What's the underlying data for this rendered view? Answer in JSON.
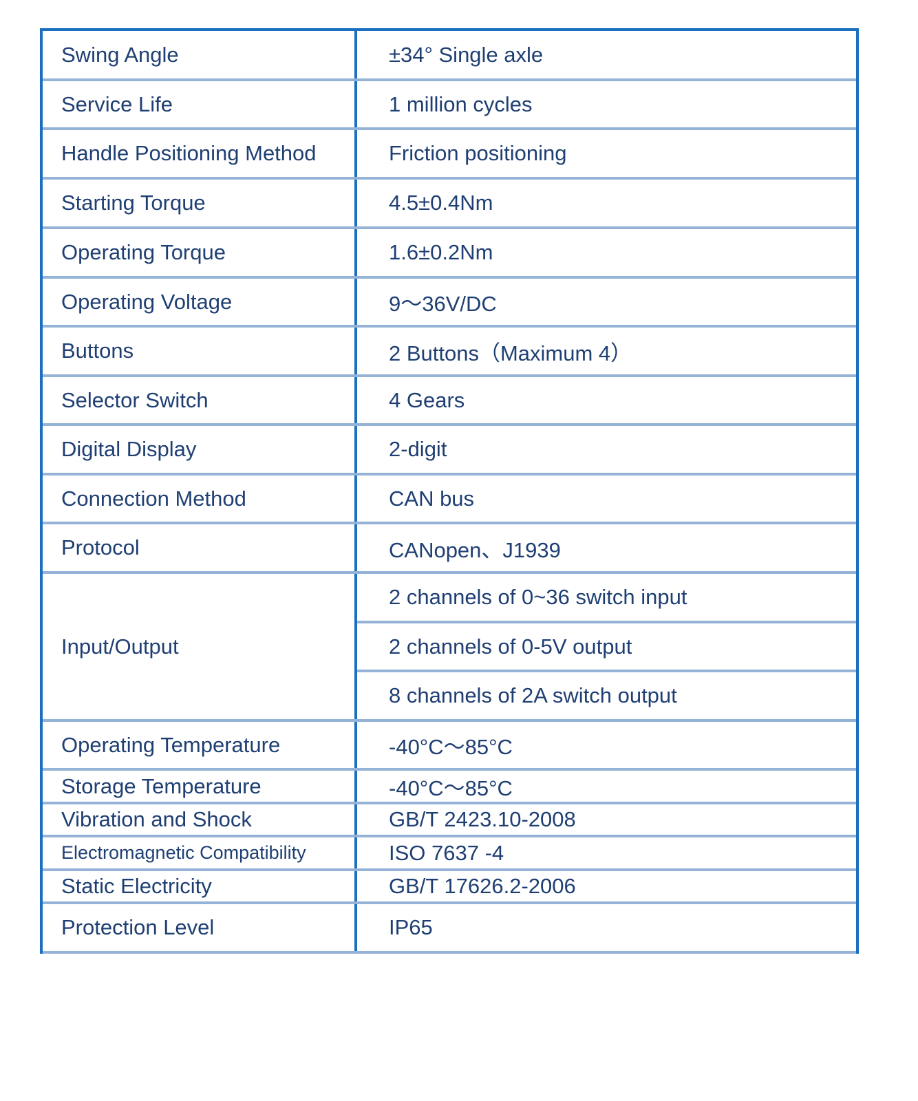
{
  "colors": {
    "outer_border": "#1a6fc0",
    "row_divider": "#95b3d7",
    "text": "#1f3f73"
  },
  "rows": [
    {
      "label": "Swing Angle",
      "value": "±34°  Single axle"
    },
    {
      "label": "Service Life",
      "value": "1 million cycles"
    },
    {
      "label": "Handle Positioning Method",
      "value": "Friction positioning"
    },
    {
      "label": "Starting Torque",
      "value": "4.5±0.4Nm"
    },
    {
      "label": "Operating Torque",
      "value": "1.6±0.2Nm"
    },
    {
      "label": "Operating Voltage",
      "value": "9～36V/DC"
    },
    {
      "label": "Buttons",
      "value": "2 Buttons（Maximum 4）"
    },
    {
      "label": "Selector Switch",
      "value": "4 Gears"
    },
    {
      "label": "Digital Display",
      "value": "2-digit"
    },
    {
      "label": "Connection Method",
      "value": "CAN bus"
    },
    {
      "label": "Protocol",
      "value": "CANopen、J1939"
    },
    {
      "label": "Input/Output",
      "values": [
        "2 channels of 0~36 switch input",
        "2 channels of 0-5V output",
        "8 channels of 2A switch output"
      ]
    },
    {
      "label": "Operating Temperature",
      "value": "-40°C～85°C"
    },
    {
      "label": "Storage Temperature",
      "value": "-40°C～85°C"
    },
    {
      "label": "Vibration and Shock",
      "value": "GB/T  2423.10-2008"
    },
    {
      "label": "Electromagnetic Compatibility",
      "value": "ISO 7637 -4"
    },
    {
      "label": "Static Electricity",
      "value": "GB/T  17626.2-2006"
    },
    {
      "label": "Protection Level",
      "value": "IP65"
    }
  ]
}
